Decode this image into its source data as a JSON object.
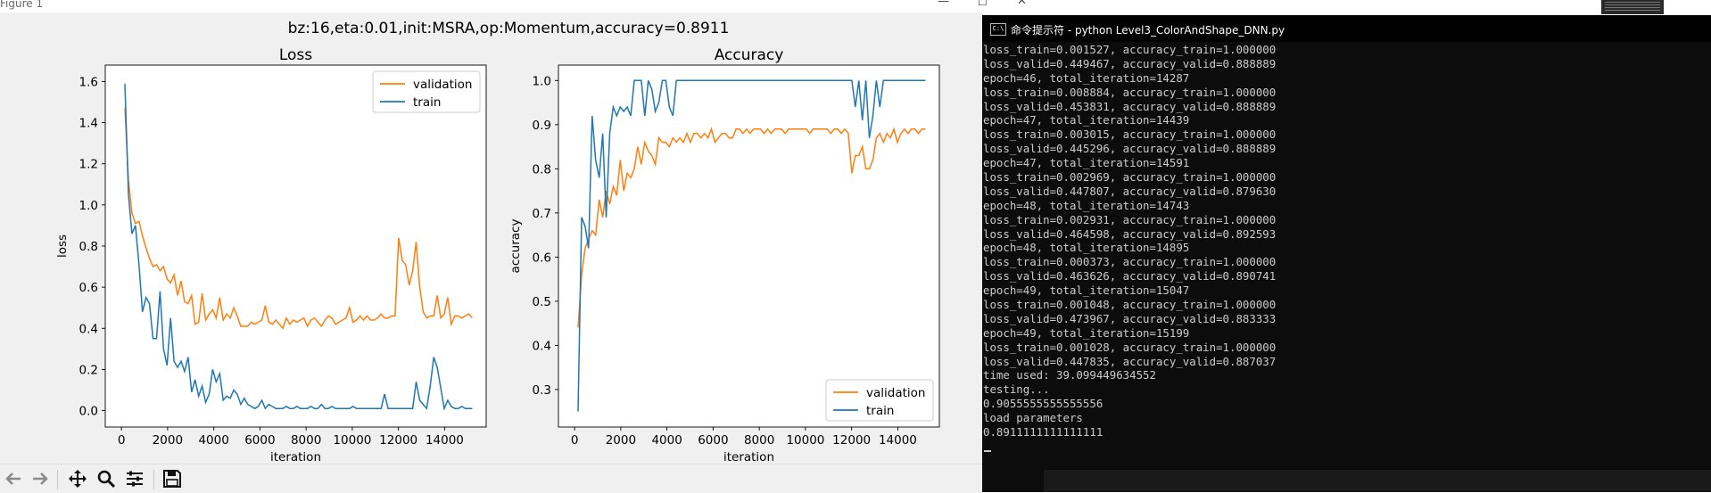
{
  "figure_window": {
    "title": "Figure 1",
    "controls": {
      "minimize": "—",
      "maximize": "☐",
      "close": "✕"
    },
    "suptitle": "bz:16,eta:0.01,init:MSRA,op:Momentum,accuracy=0.8911"
  },
  "toolbar": {
    "buttons": [
      {
        "name": "back-button",
        "icon": "arrow-left-icon"
      },
      {
        "name": "forward-button",
        "icon": "arrow-right-icon"
      },
      {
        "name": "pan-button",
        "icon": "pan-move-icon"
      },
      {
        "name": "zoom-button",
        "icon": "magnifier-icon"
      },
      {
        "name": "configure-subplots-button",
        "icon": "sliders-icon"
      },
      {
        "name": "save-button",
        "icon": "floppy-disk-icon"
      }
    ]
  },
  "chart_data": [
    {
      "type": "line",
      "title": "Loss",
      "xlabel": "iteration",
      "ylabel": "loss",
      "xlim": [
        -700,
        15800
      ],
      "ylim": [
        -0.08,
        1.68
      ],
      "xticks": [
        0,
        2000,
        4000,
        6000,
        8000,
        10000,
        12000,
        14000
      ],
      "yticks": [
        0.0,
        0.2,
        0.4,
        0.6,
        0.8,
        1.0,
        1.2,
        1.4,
        1.6
      ],
      "legend": "upper right",
      "grid": false,
      "series": [
        {
          "name": "validation",
          "color": "#ff7f0e",
          "x": [
            152,
            304,
            456,
            608,
            760,
            912,
            1064,
            1216,
            1368,
            1520,
            1672,
            1824,
            1976,
            2128,
            2280,
            2432,
            2584,
            2736,
            2888,
            3040,
            3192,
            3344,
            3496,
            3648,
            3800,
            3952,
            4104,
            4256,
            4408,
            4560,
            4712,
            4864,
            5016,
            5168,
            5320,
            5472,
            5624,
            5776,
            5928,
            6080,
            6232,
            6384,
            6536,
            6688,
            6840,
            6992,
            7144,
            7296,
            7448,
            7600,
            7752,
            7904,
            8056,
            8208,
            8360,
            8512,
            8664,
            8816,
            8968,
            9120,
            9272,
            9424,
            9576,
            9728,
            9880,
            10032,
            10184,
            10336,
            10488,
            10640,
            10792,
            10944,
            11096,
            11248,
            11400,
            11552,
            11704,
            11856,
            12008,
            12160,
            12312,
            12464,
            12616,
            12768,
            12920,
            13072,
            13224,
            13376,
            13528,
            13680,
            13832,
            13984,
            14136,
            14288,
            14440,
            14592,
            14744,
            14896,
            15048,
            15199
          ],
          "values": [
            1.47,
            1.12,
            0.96,
            0.91,
            0.92,
            0.85,
            0.79,
            0.74,
            0.7,
            0.71,
            0.68,
            0.7,
            0.64,
            0.62,
            0.66,
            0.56,
            0.63,
            0.53,
            0.52,
            0.56,
            0.42,
            0.43,
            0.57,
            0.44,
            0.47,
            0.49,
            0.45,
            0.55,
            0.44,
            0.47,
            0.45,
            0.5,
            0.46,
            0.41,
            0.41,
            0.41,
            0.43,
            0.42,
            0.43,
            0.44,
            0.51,
            0.43,
            0.42,
            0.44,
            0.42,
            0.4,
            0.45,
            0.42,
            0.44,
            0.43,
            0.44,
            0.45,
            0.41,
            0.44,
            0.45,
            0.43,
            0.41,
            0.44,
            0.46,
            0.45,
            0.42,
            0.43,
            0.44,
            0.45,
            0.5,
            0.43,
            0.44,
            0.46,
            0.44,
            0.46,
            0.44,
            0.44,
            0.45,
            0.47,
            0.45,
            0.45,
            0.46,
            0.46,
            0.84,
            0.73,
            0.71,
            0.61,
            0.68,
            0.82,
            0.6,
            0.48,
            0.45,
            0.46,
            0.46,
            0.56,
            0.45,
            0.47,
            0.55,
            0.42,
            0.46,
            0.46,
            0.45,
            0.46,
            0.47,
            0.45
          ]
        },
        {
          "name": "train",
          "color": "#1f77b4",
          "x": [
            152,
            304,
            456,
            608,
            760,
            912,
            1064,
            1216,
            1368,
            1520,
            1672,
            1824,
            1976,
            2128,
            2280,
            2432,
            2584,
            2736,
            2888,
            3040,
            3192,
            3344,
            3496,
            3648,
            3800,
            3952,
            4104,
            4256,
            4408,
            4560,
            4712,
            4864,
            5016,
            5168,
            5320,
            5472,
            5624,
            5776,
            5928,
            6080,
            6232,
            6384,
            6536,
            6688,
            6840,
            6992,
            7144,
            7296,
            7448,
            7600,
            7752,
            7904,
            8056,
            8208,
            8360,
            8512,
            8664,
            8816,
            8968,
            9120,
            9272,
            9424,
            9576,
            9728,
            9880,
            10032,
            10184,
            10336,
            10488,
            10640,
            10792,
            10944,
            11096,
            11248,
            11400,
            11552,
            11704,
            11856,
            12008,
            12160,
            12312,
            12464,
            12616,
            12768,
            12920,
            13072,
            13224,
            13376,
            13528,
            13680,
            13832,
            13984,
            14136,
            14288,
            14440,
            14592,
            14744,
            14896,
            15048,
            15199
          ],
          "values": [
            1.59,
            1.05,
            0.86,
            0.9,
            0.71,
            0.48,
            0.55,
            0.52,
            0.35,
            0.35,
            0.58,
            0.3,
            0.22,
            0.45,
            0.24,
            0.21,
            0.24,
            0.19,
            0.26,
            0.09,
            0.15,
            0.07,
            0.12,
            0.04,
            0.08,
            0.2,
            0.14,
            0.18,
            0.05,
            0.07,
            0.06,
            0.1,
            0.08,
            0.03,
            0.06,
            0.03,
            0.02,
            0.01,
            0.02,
            0.05,
            0.01,
            0.03,
            0.02,
            0.01,
            0.01,
            0.01,
            0.02,
            0.01,
            0.01,
            0.02,
            0.01,
            0.01,
            0.01,
            0.02,
            0.01,
            0.01,
            0.03,
            0.01,
            0.01,
            0.02,
            0.01,
            0.01,
            0.01,
            0.01,
            0.01,
            0.02,
            0.01,
            0.01,
            0.01,
            0.01,
            0.01,
            0.01,
            0.01,
            0.01,
            0.08,
            0.01,
            0.01,
            0.01,
            0.01,
            0.01,
            0.01,
            0.01,
            0.01,
            0.14,
            0.05,
            0.03,
            0.01,
            0.12,
            0.26,
            0.21,
            0.11,
            0.01,
            0.05,
            0.02,
            0.01,
            0.01,
            0.02,
            0.01,
            0.01,
            0.01
          ]
        }
      ]
    },
    {
      "type": "line",
      "title": "Accuracy",
      "xlabel": "iteration",
      "ylabel": "accuracy",
      "xlim": [
        -700,
        15800
      ],
      "ylim": [
        0.215,
        1.035
      ],
      "xticks": [
        0,
        2000,
        4000,
        6000,
        8000,
        10000,
        12000,
        14000
      ],
      "yticks": [
        0.3,
        0.4,
        0.5,
        0.6,
        0.7,
        0.8,
        0.9,
        1.0
      ],
      "legend": "lower right",
      "grid": false,
      "series": [
        {
          "name": "validation",
          "color": "#ff7f0e",
          "x": [
            152,
            304,
            456,
            608,
            760,
            912,
            1064,
            1216,
            1368,
            1520,
            1672,
            1824,
            1976,
            2128,
            2280,
            2432,
            2584,
            2736,
            2888,
            3040,
            3192,
            3344,
            3496,
            3648,
            3800,
            3952,
            4104,
            4256,
            4408,
            4560,
            4712,
            4864,
            5016,
            5168,
            5320,
            5472,
            5624,
            5776,
            5928,
            6080,
            6232,
            6384,
            6536,
            6688,
            6840,
            6992,
            7144,
            7296,
            7448,
            7600,
            7752,
            7904,
            8056,
            8208,
            8360,
            8512,
            8664,
            8816,
            8968,
            9120,
            9272,
            9424,
            9576,
            9728,
            9880,
            10032,
            10184,
            10336,
            10488,
            10640,
            10792,
            10944,
            11096,
            11248,
            11400,
            11552,
            11704,
            11856,
            12008,
            12160,
            12312,
            12464,
            12616,
            12768,
            12920,
            13072,
            13224,
            13376,
            13528,
            13680,
            13832,
            13984,
            14136,
            14288,
            14440,
            14592,
            14744,
            14896,
            15048,
            15199
          ],
          "values": [
            0.44,
            0.56,
            0.62,
            0.64,
            0.66,
            0.65,
            0.73,
            0.69,
            0.75,
            0.72,
            0.76,
            0.74,
            0.82,
            0.75,
            0.79,
            0.78,
            0.8,
            0.85,
            0.81,
            0.86,
            0.84,
            0.83,
            0.81,
            0.87,
            0.86,
            0.86,
            0.85,
            0.87,
            0.86,
            0.87,
            0.86,
            0.88,
            0.86,
            0.88,
            0.88,
            0.87,
            0.88,
            0.87,
            0.89,
            0.86,
            0.87,
            0.88,
            0.88,
            0.87,
            0.87,
            0.89,
            0.89,
            0.88,
            0.89,
            0.88,
            0.89,
            0.89,
            0.89,
            0.88,
            0.89,
            0.88,
            0.89,
            0.89,
            0.89,
            0.88,
            0.89,
            0.89,
            0.89,
            0.89,
            0.89,
            0.89,
            0.88,
            0.89,
            0.89,
            0.89,
            0.89,
            0.89,
            0.88,
            0.89,
            0.89,
            0.88,
            0.89,
            0.88,
            0.79,
            0.83,
            0.83,
            0.85,
            0.8,
            0.8,
            0.82,
            0.87,
            0.88,
            0.86,
            0.88,
            0.87,
            0.89,
            0.86,
            0.88,
            0.89,
            0.88,
            0.89,
            0.89,
            0.88,
            0.89,
            0.89
          ]
        },
        {
          "name": "train",
          "color": "#1f77b4",
          "x": [
            152,
            304,
            456,
            608,
            760,
            912,
            1064,
            1216,
            1368,
            1520,
            1672,
            1824,
            1976,
            2128,
            2280,
            2432,
            2584,
            2736,
            2888,
            3040,
            3192,
            3344,
            3496,
            3648,
            3800,
            3952,
            4104,
            4256,
            4408,
            4560,
            4712,
            4864,
            5016,
            5168,
            5320,
            5472,
            5624,
            5776,
            5928,
            6080,
            6232,
            6384,
            6536,
            6688,
            6840,
            6992,
            7144,
            7296,
            7448,
            7600,
            7752,
            7904,
            8056,
            8208,
            8360,
            8512,
            8664,
            8816,
            8968,
            9120,
            9272,
            9424,
            9576,
            9728,
            9880,
            10032,
            10184,
            10336,
            10488,
            10640,
            10792,
            10944,
            11096,
            11248,
            11400,
            11552,
            11704,
            11856,
            12008,
            12160,
            12312,
            12464,
            12616,
            12768,
            12920,
            13072,
            13224,
            13376,
            13528,
            13680,
            13832,
            13984,
            14136,
            14288,
            14440,
            14592,
            14744,
            14896,
            15048,
            15199
          ],
          "values": [
            0.25,
            0.69,
            0.67,
            0.62,
            0.92,
            0.82,
            0.78,
            0.88,
            0.69,
            0.88,
            0.94,
            0.92,
            0.94,
            0.93,
            0.94,
            0.92,
            1.0,
            1.0,
            1.0,
            0.92,
            1.0,
            0.98,
            0.93,
            0.95,
            1.0,
            1.0,
            0.94,
            0.92,
            1.0,
            1.0,
            1.0,
            1.0,
            1.0,
            1.0,
            1.0,
            1.0,
            1.0,
            1.0,
            1.0,
            1.0,
            1.0,
            1.0,
            1.0,
            1.0,
            1.0,
            1.0,
            1.0,
            1.0,
            1.0,
            1.0,
            1.0,
            1.0,
            1.0,
            1.0,
            1.0,
            1.0,
            1.0,
            1.0,
            1.0,
            1.0,
            1.0,
            1.0,
            1.0,
            1.0,
            1.0,
            1.0,
            1.0,
            1.0,
            1.0,
            1.0,
            1.0,
            1.0,
            1.0,
            1.0,
            1.0,
            1.0,
            1.0,
            1.0,
            1.0,
            0.94,
            1.0,
            0.91,
            1.0,
            0.87,
            0.92,
            1.0,
            0.94,
            1.0,
            1.0,
            1.0,
            1.0,
            1.0,
            1.0,
            1.0,
            1.0,
            1.0,
            1.0,
            1.0,
            1.0,
            1.0
          ]
        }
      ]
    }
  ],
  "terminal": {
    "title": "命令提示符 - python  Level3_ColorAndShape_DNN.py",
    "icon_text": "C:\\",
    "lines": [
      "loss_train=0.001527, accuracy_train=1.000000",
      "loss_valid=0.449467, accuracy_valid=0.888889",
      "epoch=46, total_iteration=14287",
      "loss_train=0.008884, accuracy_train=1.000000",
      "loss_valid=0.453831, accuracy_valid=0.888889",
      "epoch=47, total_iteration=14439",
      "loss_train=0.003015, accuracy_train=1.000000",
      "loss_valid=0.445296, accuracy_valid=0.888889",
      "epoch=47, total_iteration=14591",
      "loss_train=0.002969, accuracy_train=1.000000",
      "loss_valid=0.447807, accuracy_valid=0.879630",
      "epoch=48, total_iteration=14743",
      "loss_train=0.002931, accuracy_train=1.000000",
      "loss_valid=0.464598, accuracy_valid=0.892593",
      "epoch=48, total_iteration=14895",
      "loss_train=0.000373, accuracy_train=1.000000",
      "loss_valid=0.463626, accuracy_valid=0.890741",
      "epoch=49, total_iteration=15047",
      "loss_train=0.001048, accuracy_train=1.000000",
      "loss_valid=0.473967, accuracy_valid=0.883333",
      "epoch=49, total_iteration=15199",
      "loss_train=0.001028, accuracy_train=1.000000",
      "loss_valid=0.447835, accuracy_valid=0.887037",
      "time used: 39.099449634552",
      "testing...",
      "0.9055555555555556",
      "load parameters",
      "0.8911111111111111"
    ]
  }
}
